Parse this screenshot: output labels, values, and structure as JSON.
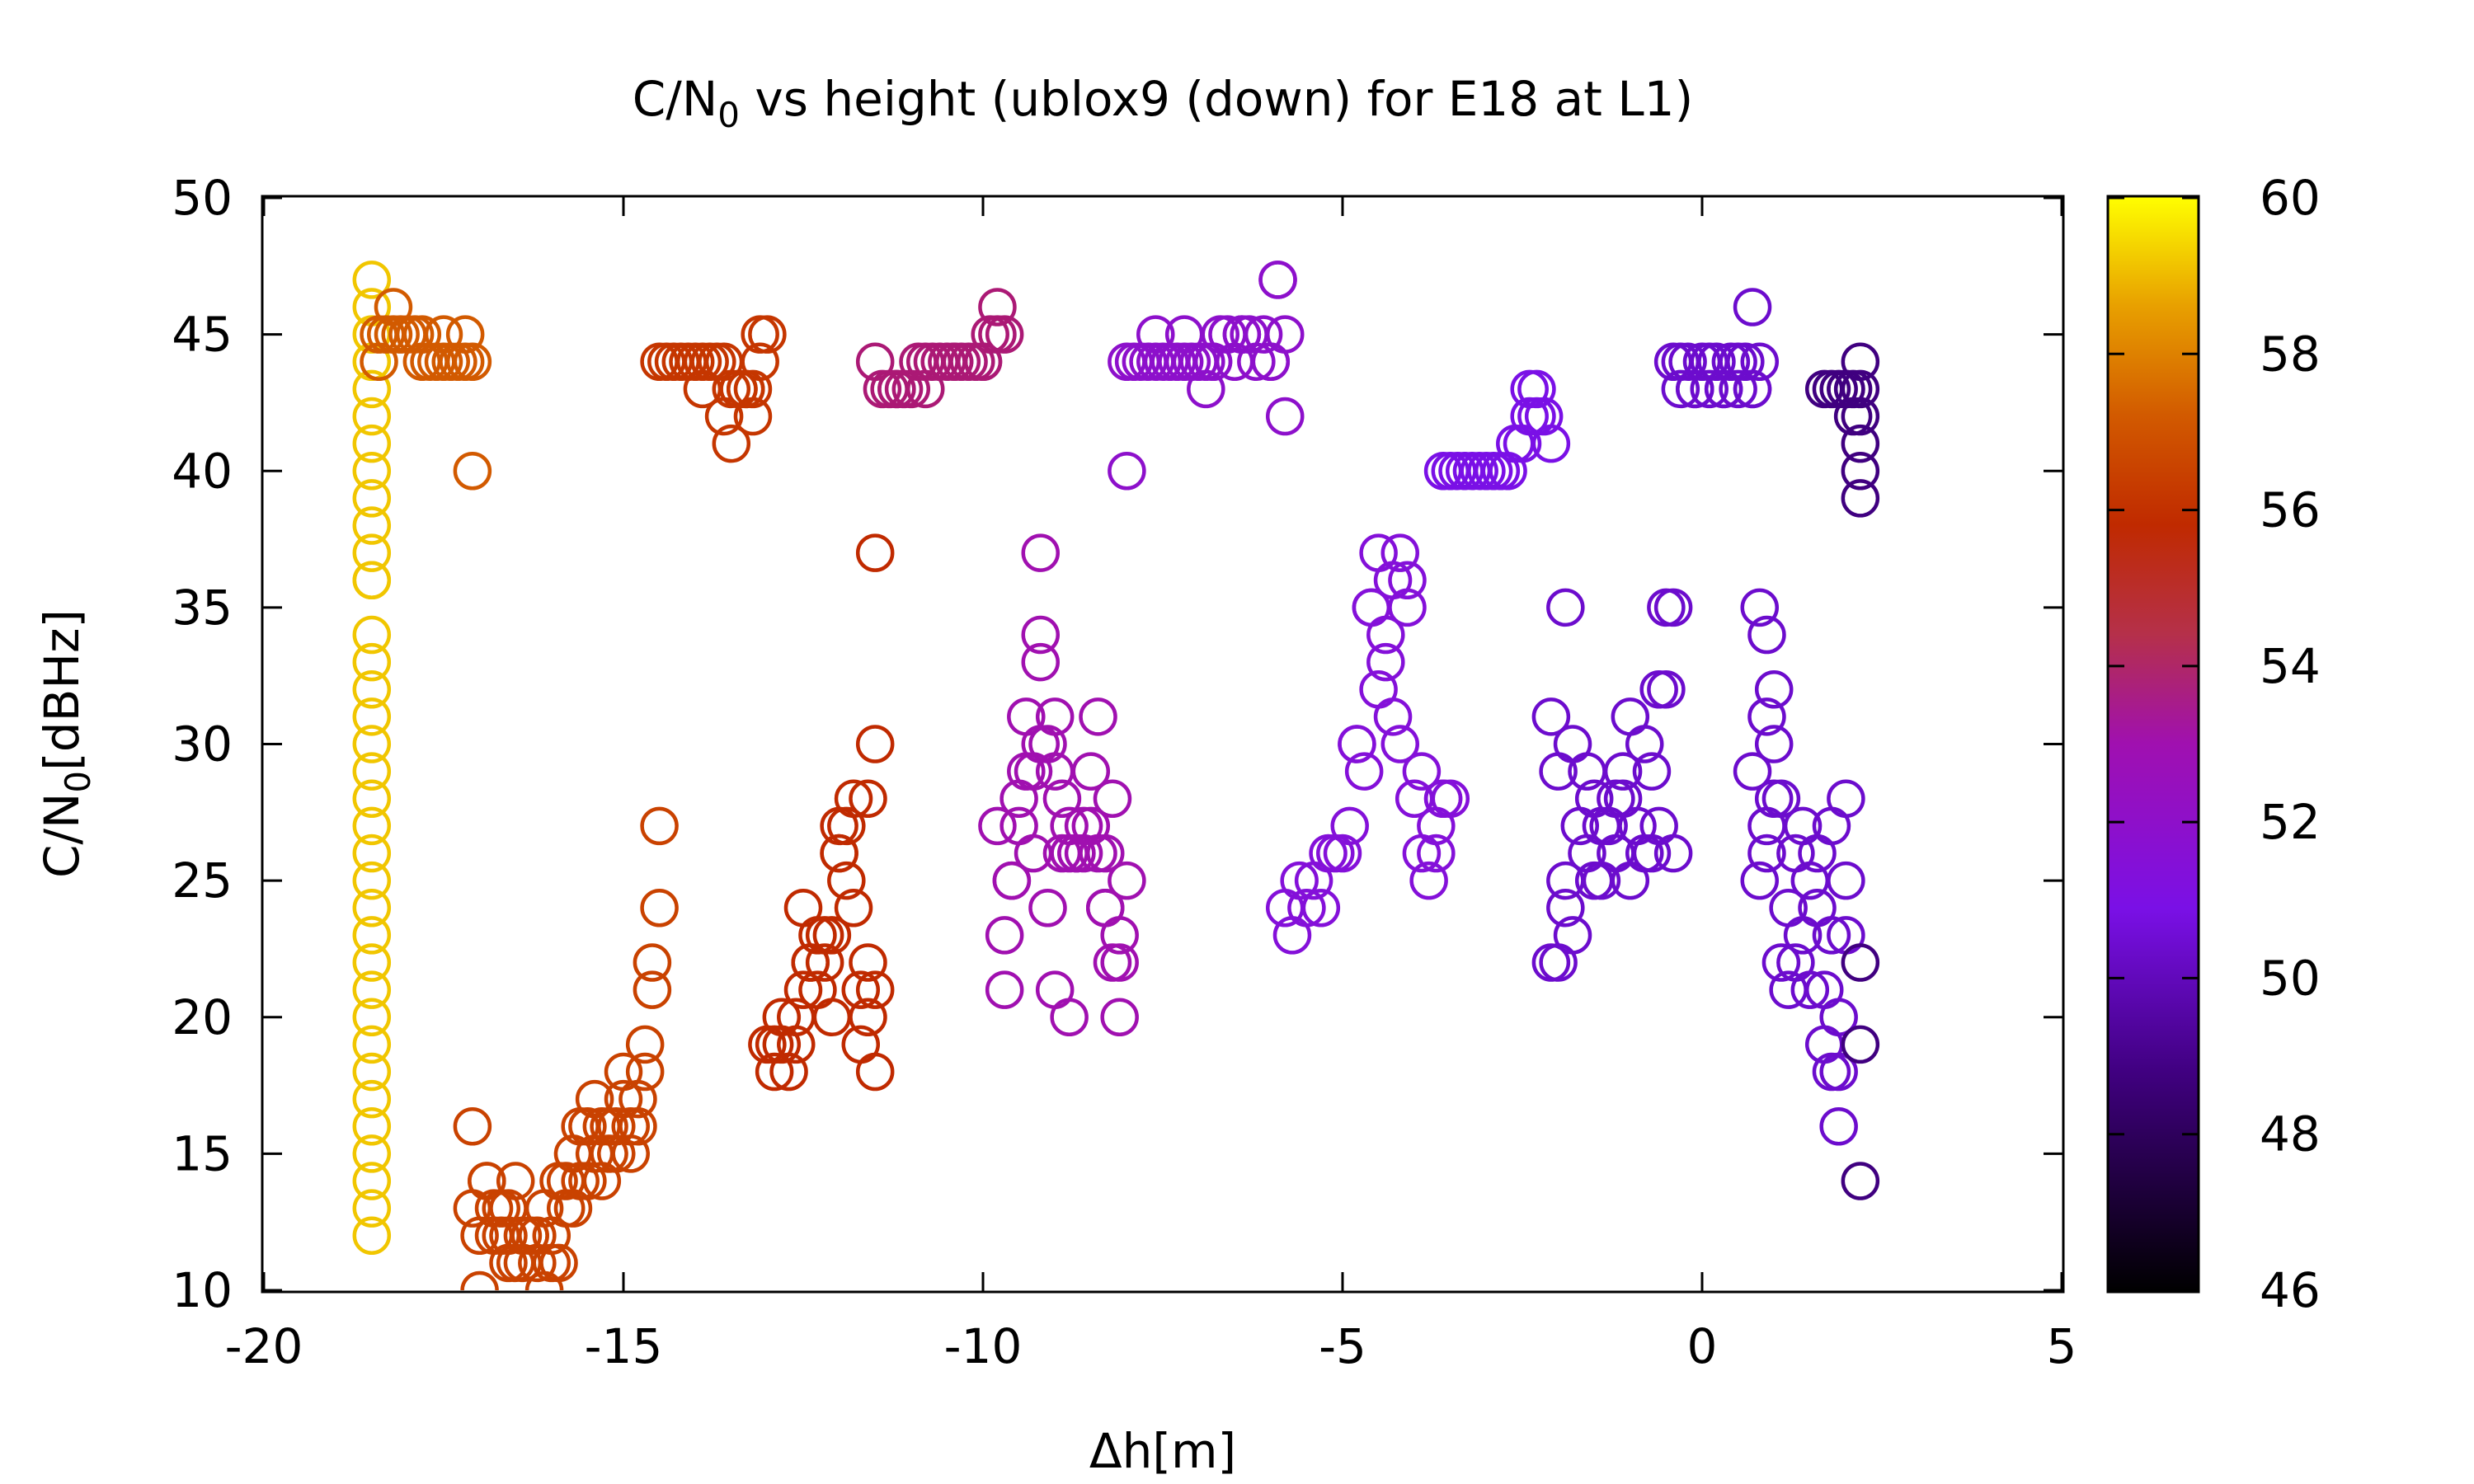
{
  "chart_data": {
    "type": "scatter",
    "title": {
      "prefix": "C/N",
      "sub": "0",
      "suffix": " vs height (ublox9 (down) for E18 at L1)"
    },
    "xlabel": "Δh[m]",
    "ylabel": {
      "prefix": "C/N",
      "sub": "0",
      "suffix": "[dBHz]"
    },
    "xlim": [
      -20,
      5
    ],
    "ylim": [
      10,
      50
    ],
    "xticks": [
      -20,
      -15,
      -10,
      -5,
      0,
      5
    ],
    "yticks": [
      10,
      15,
      20,
      25,
      30,
      35,
      40,
      45,
      50
    ],
    "grid": false,
    "legend": "none",
    "marker": "open-circle",
    "colorbar": {
      "range": [
        46,
        60
      ],
      "ticks": [
        46,
        48,
        50,
        52,
        54,
        56,
        58,
        60
      ],
      "palette": "black-purple-red-orange-yellow"
    },
    "clusters": [
      {
        "c": 58.5,
        "x": [
          -18.5,
          -18.5,
          -18.5,
          -18.5,
          -18.5,
          -18.5,
          -18.5,
          -18.5,
          -18.5,
          -18.5,
          -18.5,
          -18.5,
          -18.5,
          -18.5,
          -18.5,
          -18.5,
          -18.5,
          -18.5,
          -18.5,
          -18.5,
          -18.5,
          -18.5,
          -18.5,
          -18.5,
          -18.5,
          -18.5,
          -18.5,
          -18.5,
          -18.5,
          -18.5,
          -18.5,
          -18.5,
          -18.5,
          -18.5,
          -18.5,
          -18.5
        ],
        "y": [
          12,
          13,
          14,
          15,
          16,
          17,
          18,
          19,
          20,
          21,
          22,
          23,
          24,
          25,
          26,
          27,
          28,
          29,
          30,
          31,
          32,
          33,
          34,
          36,
          37,
          38,
          39,
          40,
          41,
          42,
          43,
          44,
          45,
          46,
          47,
          36
        ]
      },
      {
        "c": 55.5,
        "x": [
          -18.4,
          -18.3,
          -18.2,
          -18.1,
          -18.0,
          -17.9,
          -17.8,
          -17.7,
          -17.6,
          -17.5,
          -17.4,
          -17.3,
          -17.2,
          -17.1,
          -18.2,
          -17.8,
          -17.5,
          -17.2,
          -18.4,
          -17.1
        ],
        "y": [
          45,
          45,
          45,
          45,
          45,
          45,
          44,
          44,
          44,
          44,
          44,
          44,
          44,
          44,
          46,
          45,
          45,
          45,
          44,
          40
        ]
      },
      {
        "c": 54.5,
        "x": [
          -17.1,
          -17.0,
          -16.9,
          -16.8,
          -16.7,
          -16.6,
          -16.5,
          -16.4,
          -16.3,
          -16.2,
          -16.1,
          -16.0,
          -15.9,
          -15.8,
          -15.7,
          -15.6,
          -15.5,
          -15.4,
          -15.3,
          -15.2,
          -15.1,
          -15.0,
          -14.9,
          -14.8,
          -14.7,
          -14.6,
          -14.5,
          -17.0,
          -16.8,
          -16.6,
          -16.4,
          -16.2,
          -16.0,
          -15.8,
          -15.6,
          -15.4,
          -15.2,
          -15.0,
          -14.8,
          -16.9,
          -16.5,
          -16.1,
          -15.7,
          -15.3,
          -14.9,
          -16.7,
          -16.3,
          -15.9,
          -15.5,
          -15.1,
          -14.7,
          -17.1,
          -16.6,
          -14.6,
          -14.5
        ],
        "y": [
          13,
          12,
          14,
          12,
          13,
          11,
          14,
          12,
          12,
          11,
          13,
          12,
          14,
          14,
          15,
          16,
          16,
          17,
          16,
          15,
          15,
          18,
          16,
          17,
          19,
          21,
          24,
          10,
          13,
          12,
          11,
          12,
          11,
          13,
          14,
          15,
          16,
          17,
          16,
          14,
          11,
          10,
          13,
          14,
          15,
          12,
          12,
          11,
          14,
          16,
          18,
          16,
          13,
          22,
          27
        ]
      },
      {
        "c": 54.0,
        "x": [
          -14.5,
          -14.4,
          -14.3,
          -14.2,
          -14.1,
          -14.0,
          -13.9,
          -13.8,
          -13.7,
          -13.6,
          -13.5,
          -13.4,
          -13.3,
          -13.2,
          -13.1,
          -13.0,
          -13.6,
          -13.4,
          -13.2,
          -13.9,
          -13.5,
          -13.1,
          -13.3
        ],
        "y": [
          44,
          44,
          44,
          44,
          44,
          44,
          44,
          44,
          44,
          44,
          43,
          43,
          43,
          43,
          44,
          45,
          42,
          43,
          42,
          43,
          41,
          45,
          43
        ]
      },
      {
        "c": 53.5,
        "x": [
          -13.0,
          -12.9,
          -12.8,
          -12.7,
          -12.6,
          -12.5,
          -12.4,
          -12.3,
          -12.2,
          -12.1,
          -12.0,
          -11.9,
          -11.8,
          -11.7,
          -11.6,
          -11.5,
          -12.8,
          -12.6,
          -12.4,
          -12.2,
          -12.0,
          -11.8,
          -11.6,
          -12.9,
          -12.5,
          -12.1,
          -11.7,
          -12.3,
          -11.9,
          -11.5,
          -11.5,
          -11.5,
          -11.6,
          -12.0
        ],
        "y": [
          19,
          19,
          19,
          18,
          20,
          21,
          22,
          23,
          22,
          23,
          26,
          27,
          24,
          21,
          20,
          21,
          20,
          19,
          22,
          23,
          26,
          28,
          22,
          18,
          24,
          20,
          19,
          21,
          25,
          18,
          30,
          37,
          28,
          27
        ]
      },
      {
        "c": 52.5,
        "x": [
          -11.5,
          -11.4,
          -11.3,
          -11.2,
          -11.1,
          -11.0,
          -10.9,
          -10.8,
          -10.7,
          -10.6,
          -10.5,
          -10.4,
          -10.3,
          -10.2,
          -10.1,
          -10.0,
          -9.9,
          -9.8,
          -11.2,
          -10.8,
          -10.4,
          -10.0,
          -9.8,
          -9.7
        ],
        "y": [
          44,
          43,
          43,
          43,
          43,
          43,
          44,
          44,
          44,
          44,
          44,
          44,
          44,
          44,
          44,
          44,
          45,
          45,
          43,
          43,
          44,
          44,
          46,
          45
        ]
      },
      {
        "c": 52.0,
        "x": [
          -9.8,
          -9.7,
          -9.6,
          -9.5,
          -9.4,
          -9.3,
          -9.2,
          -9.1,
          -9.0,
          -8.9,
          -8.8,
          -8.7,
          -8.6,
          -8.5,
          -8.4,
          -8.3,
          -8.2,
          -8.1,
          -9.7,
          -9.5,
          -9.3,
          -9.1,
          -8.9,
          -8.7,
          -8.5,
          -8.3,
          -8.1,
          -9.6,
          -9.4,
          -9.2,
          -9.0,
          -8.8,
          -8.6,
          -8.4,
          -8.2,
          -9.2,
          -9.2,
          -9.0,
          -8.8,
          -8.3,
          -8.1,
          -8.0
        ],
        "y": [
          27,
          23,
          25,
          28,
          31,
          29,
          33,
          30,
          21,
          26,
          27,
          26,
          27,
          29,
          26,
          24,
          22,
          20,
          21,
          27,
          26,
          24,
          28,
          26,
          27,
          26,
          23,
          25,
          29,
          34,
          31,
          20,
          26,
          31,
          28,
          37,
          30,
          29,
          26,
          24,
          22,
          25
        ]
      },
      {
        "c": 51.0,
        "x": [
          -8.0,
          -7.9,
          -7.8,
          -7.7,
          -7.6,
          -7.5,
          -7.4,
          -7.3,
          -7.2,
          -7.1,
          -7.0,
          -6.9,
          -6.8,
          -6.7,
          -6.6,
          -6.5,
          -6.4,
          -6.3,
          -6.2,
          -6.1,
          -6.0,
          -5.9,
          -5.8,
          -5.8,
          -7.6,
          -7.2,
          -6.8,
          -6.4,
          -6.0,
          -6.9,
          -8.0,
          -5.9
        ],
        "y": [
          44,
          44,
          44,
          44,
          44,
          44,
          44,
          44,
          44,
          44,
          44,
          44,
          44,
          45,
          45,
          44,
          45,
          45,
          44,
          45,
          44,
          47,
          45,
          42,
          45,
          45,
          44,
          45,
          44,
          43,
          40,
          47
        ]
      },
      {
        "c": 50.5,
        "x": [
          -5.8,
          -5.7,
          -5.6,
          -5.5,
          -5.4,
          -5.3,
          -5.2,
          -5.1,
          -5.0,
          -4.9,
          -4.8,
          -4.7,
          -4.6,
          -4.5,
          -4.4,
          -4.3,
          -4.2,
          -4.1,
          -4.0,
          -3.9,
          -3.8,
          -3.7,
          -3.6,
          -3.5,
          -4.5,
          -4.3,
          -4.1,
          -3.9,
          -4.4,
          -4.2,
          -3.7,
          -3.6,
          -4.8,
          -4.6
        ],
        "y": [
          24,
          23,
          25,
          24,
          25,
          24,
          26,
          26,
          26,
          27,
          30,
          29,
          35,
          37,
          33,
          36,
          37,
          35,
          28,
          26,
          25,
          27,
          28,
          28,
          32,
          31,
          36,
          29,
          34,
          30,
          26,
          28,
          30,
          35
        ]
      },
      {
        "c": 50.0,
        "x": [
          -3.6,
          -3.5,
          -3.4,
          -3.3,
          -3.2,
          -3.1,
          -3.0,
          -2.9,
          -2.8,
          -2.7,
          -2.6,
          -2.5,
          -2.4,
          -2.3,
          -2.2,
          -2.1,
          -2.4,
          -2.3
        ],
        "y": [
          40,
          40,
          40,
          40,
          40,
          40,
          40,
          40,
          40,
          40,
          41,
          41,
          42,
          43,
          42,
          41,
          43,
          42
        ]
      },
      {
        "c": 49.5,
        "x": [
          -2.1,
          -2.0,
          -1.9,
          -1.8,
          -1.7,
          -1.6,
          -1.5,
          -1.4,
          -1.3,
          -1.2,
          -1.1,
          -1.0,
          -0.9,
          -0.8,
          -0.7,
          -0.6,
          -0.5,
          -0.4,
          -2.0,
          -1.8,
          -1.6,
          -1.4,
          -1.2,
          -1.0,
          -0.8,
          -0.6,
          -0.4,
          -1.9,
          -1.5,
          -1.1,
          -0.7,
          -2.1,
          -1.9,
          -0.5
        ],
        "y": [
          31,
          29,
          25,
          30,
          27,
          26,
          28,
          25,
          27,
          26,
          29,
          31,
          27,
          30,
          26,
          32,
          32,
          35,
          22,
          23,
          29,
          27,
          28,
          25,
          26,
          27,
          26,
          35,
          25,
          28,
          29,
          22,
          24,
          35
        ]
      },
      {
        "c": 49.5,
        "x": [
          -0.4,
          -0.3,
          -0.2,
          -0.1,
          0.0,
          0.1,
          0.2,
          0.3,
          0.4,
          0.5,
          0.6,
          0.7,
          0.8,
          -0.3,
          -0.1,
          0.1,
          0.3,
          0.5,
          0.7,
          0.7
        ],
        "y": [
          44,
          43,
          44,
          43,
          44,
          43,
          44,
          43,
          44,
          43,
          44,
          43,
          44,
          44,
          43,
          44,
          43,
          44,
          43,
          46
        ]
      },
      {
        "c": 49.5,
        "x": [
          0.7,
          0.8,
          0.9,
          1.0,
          1.1,
          1.2,
          1.3,
          1.4,
          1.5,
          1.6,
          1.7,
          1.8,
          1.9,
          2.0,
          0.8,
          1.0,
          1.2,
          1.4,
          1.6,
          1.8,
          2.0,
          0.9,
          1.1,
          1.3,
          1.5,
          1.7,
          1.9,
          0.9,
          0.9,
          1.0,
          1.8,
          1.9,
          2.0
        ],
        "y": [
          29,
          25,
          27,
          32,
          28,
          21,
          22,
          27,
          25,
          24,
          21,
          23,
          20,
          25,
          35,
          30,
          24,
          23,
          26,
          27,
          23,
          34,
          22,
          26,
          21,
          19,
          18,
          31,
          26,
          28,
          18,
          16,
          28
        ]
      },
      {
        "c": 48.0,
        "x": [
          1.7,
          1.8,
          1.9,
          2.0,
          2.1,
          2.2,
          2.2,
          2.2,
          2.2,
          2.2,
          2.1,
          2.0,
          2.2,
          2.2,
          2.2,
          2.2
        ],
        "y": [
          43,
          43,
          43,
          43,
          43,
          44,
          43,
          42,
          41,
          40,
          42,
          43,
          39,
          22,
          19,
          14
        ]
      }
    ]
  }
}
